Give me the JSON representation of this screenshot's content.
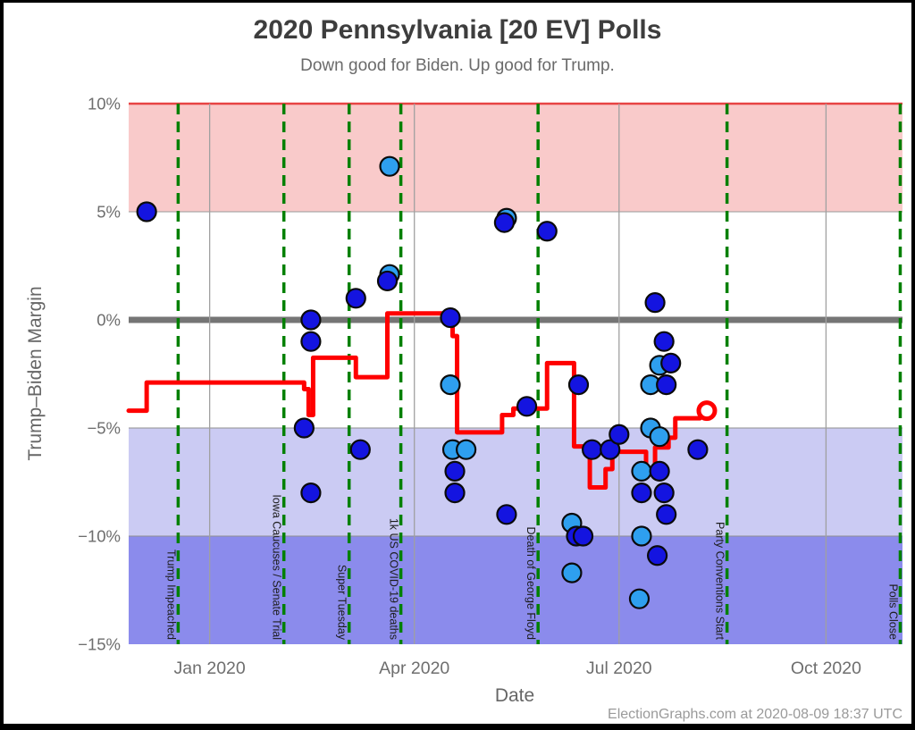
{
  "footer": {
    "credit": "ElectionGraphs.com at 2020-08-09 18:37 UTC"
  },
  "chart_data": {
    "type": "scatter",
    "title": "2020 Pennsylvania [20 EV] Polls",
    "subtitle": "Down good for Biden. Up good for Trump.",
    "xlabel": "Date",
    "ylabel": "Trump–Biden Margin",
    "x_range": [
      "2019-11-26",
      "2020-11-04"
    ],
    "ylim": [
      -15,
      10
    ],
    "grid_on": true,
    "grid_color": "#a0a0a0",
    "y_ticks": [
      {
        "value": 10,
        "label": "10%"
      },
      {
        "value": 5,
        "label": "5%"
      },
      {
        "value": 0,
        "label": "0%"
      },
      {
        "value": -5,
        "label": "−5%"
      },
      {
        "value": -10,
        "label": "−10%"
      },
      {
        "value": -15,
        "label": "−15%"
      }
    ],
    "x_ticks": [
      {
        "date": "2020-01-01",
        "label": "Jan 2020"
      },
      {
        "date": "2020-04-01",
        "label": "Apr 2020"
      },
      {
        "date": "2020-07-01",
        "label": "Jul 2020"
      },
      {
        "date": "2020-10-01",
        "label": "Oct 2020"
      }
    ],
    "bands": [
      {
        "name": "trump-lead-5-10",
        "from": 5,
        "to": 10,
        "color": "#f9caca"
      },
      {
        "name": "biden-lead-5-10",
        "from": -10,
        "to": -5,
        "color": "#cbcbf3"
      },
      {
        "name": "biden-lead-10-15",
        "from": -15,
        "to": -10,
        "color": "#8b8bec"
      }
    ],
    "reference_lines": [
      {
        "value": 10,
        "color": "#e84444",
        "width": 2.5
      },
      {
        "value": 5,
        "color": "#999999",
        "width": 1
      },
      {
        "value": 0,
        "color": "#757575",
        "width": 7
      },
      {
        "value": -5,
        "color": "#8f8f8f",
        "width": 1
      },
      {
        "value": -10,
        "color": "#8f8f8f",
        "width": 1
      }
    ],
    "events": {
      "line_color": "#008000",
      "label_color": "#1c1c1c",
      "items": [
        {
          "date": "2019-12-18",
          "label": "Trump Impeached"
        },
        {
          "date": "2020-02-03",
          "label": "Iowa Caucuses / Senate Trial"
        },
        {
          "date": "2020-03-03",
          "label": "Super Tuesday"
        },
        {
          "date": "2020-03-26",
          "label": "1k US COVID-19 deaths"
        },
        {
          "date": "2020-05-26",
          "label": "Death of George Floyd"
        },
        {
          "date": "2020-08-18",
          "label": "Party Conventions Start"
        },
        {
          "date": "2020-11-03",
          "label": "Polls Close"
        }
      ]
    },
    "average_line": {
      "color": "#ff0000",
      "width": 5,
      "points": [
        {
          "date": "2019-11-26",
          "value": -4.2
        },
        {
          "date": "2019-12-04",
          "value": -2.9
        },
        {
          "date": "2020-02-12",
          "value": -3.2
        },
        {
          "date": "2020-02-14",
          "value": -4.4
        },
        {
          "date": "2020-02-16",
          "value": -1.75
        },
        {
          "date": "2020-03-06",
          "value": -2.65
        },
        {
          "date": "2020-03-20",
          "value": 0.3
        },
        {
          "date": "2020-04-18",
          "value": -0.75
        },
        {
          "date": "2020-04-20",
          "value": -5.2
        },
        {
          "date": "2020-05-10",
          "value": -4.4
        },
        {
          "date": "2020-05-15",
          "value": -4.1
        },
        {
          "date": "2020-05-30",
          "value": -2.0
        },
        {
          "date": "2020-06-11",
          "value": -5.85
        },
        {
          "date": "2020-06-18",
          "value": -7.75
        },
        {
          "date": "2020-06-25",
          "value": -6.9
        },
        {
          "date": "2020-06-28",
          "value": -6.1
        },
        {
          "date": "2020-07-13",
          "value": -7.0
        },
        {
          "date": "2020-07-17",
          "value": -5.9
        },
        {
          "date": "2020-07-23",
          "value": -5.45
        },
        {
          "date": "2020-07-26",
          "value": -4.55
        },
        {
          "date": "2020-08-06",
          "value": -4.2
        },
        {
          "date": "2020-08-09",
          "value": -4.2
        }
      ],
      "end_marker": {
        "date": "2020-08-09",
        "value": -4.2,
        "style": "open-circle"
      }
    },
    "polls": {
      "colors": {
        "dark": "#1414e0",
        "light": "#2e9fef",
        "outline": "#0a0a0a"
      },
      "points": [
        {
          "date": "2019-12-04",
          "value": 5.0,
          "shade": "dark"
        },
        {
          "date": "2020-02-12",
          "value": -5.0,
          "shade": "dark"
        },
        {
          "date": "2020-02-15",
          "value": 0.0,
          "shade": "dark"
        },
        {
          "date": "2020-02-15",
          "value": -1.0,
          "shade": "dark"
        },
        {
          "date": "2020-02-15",
          "value": -8.0,
          "shade": "dark"
        },
        {
          "date": "2020-03-06",
          "value": 1.0,
          "shade": "dark"
        },
        {
          "date": "2020-03-08",
          "value": -6.0,
          "shade": "dark"
        },
        {
          "date": "2020-03-21",
          "value": 7.1,
          "shade": "light"
        },
        {
          "date": "2020-03-21",
          "value": 2.1,
          "shade": "light"
        },
        {
          "date": "2020-03-20",
          "value": 1.8,
          "shade": "dark"
        },
        {
          "date": "2020-04-17",
          "value": 0.1,
          "shade": "dark"
        },
        {
          "date": "2020-04-17",
          "value": -3.0,
          "shade": "light"
        },
        {
          "date": "2020-04-18",
          "value": -6.0,
          "shade": "light"
        },
        {
          "date": "2020-04-24",
          "value": -6.0,
          "shade": "light"
        },
        {
          "date": "2020-04-19",
          "value": -7.0,
          "shade": "dark"
        },
        {
          "date": "2020-04-19",
          "value": -8.0,
          "shade": "dark"
        },
        {
          "date": "2020-05-12",
          "value": 4.7,
          "shade": "light"
        },
        {
          "date": "2020-05-11",
          "value": 4.5,
          "shade": "dark"
        },
        {
          "date": "2020-05-21",
          "value": -4.0,
          "shade": "dark"
        },
        {
          "date": "2020-05-12",
          "value": -9.0,
          "shade": "dark"
        },
        {
          "date": "2020-05-30",
          "value": 4.1,
          "shade": "dark"
        },
        {
          "date": "2020-06-10",
          "value": -9.4,
          "shade": "light"
        },
        {
          "date": "2020-06-12",
          "value": -10.0,
          "shade": "dark"
        },
        {
          "date": "2020-06-15",
          "value": -10.0,
          "shade": "dark"
        },
        {
          "date": "2020-06-10",
          "value": -11.7,
          "shade": "light"
        },
        {
          "date": "2020-06-13",
          "value": -3.0,
          "shade": "dark"
        },
        {
          "date": "2020-06-19",
          "value": -6.0,
          "shade": "dark"
        },
        {
          "date": "2020-06-27",
          "value": -6.0,
          "shade": "dark"
        },
        {
          "date": "2020-07-01",
          "value": -5.3,
          "shade": "dark"
        },
        {
          "date": "2020-07-11",
          "value": -7.0,
          "shade": "light"
        },
        {
          "date": "2020-07-19",
          "value": -7.0,
          "shade": "dark"
        },
        {
          "date": "2020-07-11",
          "value": -8.0,
          "shade": "dark"
        },
        {
          "date": "2020-07-21",
          "value": -8.0,
          "shade": "dark"
        },
        {
          "date": "2020-07-22",
          "value": -9.0,
          "shade": "dark"
        },
        {
          "date": "2020-07-11",
          "value": -10.0,
          "shade": "light"
        },
        {
          "date": "2020-07-18",
          "value": -10.9,
          "shade": "dark"
        },
        {
          "date": "2020-07-10",
          "value": -12.9,
          "shade": "light"
        },
        {
          "date": "2020-07-17",
          "value": 0.8,
          "shade": "dark"
        },
        {
          "date": "2020-07-21",
          "value": -1.0,
          "shade": "dark"
        },
        {
          "date": "2020-07-19",
          "value": -2.1,
          "shade": "light"
        },
        {
          "date": "2020-07-24",
          "value": -2.0,
          "shade": "dark"
        },
        {
          "date": "2020-07-15",
          "value": -3.0,
          "shade": "light"
        },
        {
          "date": "2020-07-22",
          "value": -3.0,
          "shade": "dark"
        },
        {
          "date": "2020-07-15",
          "value": -5.0,
          "shade": "light"
        },
        {
          "date": "2020-07-19",
          "value": -5.4,
          "shade": "light"
        },
        {
          "date": "2020-08-05",
          "value": -6.0,
          "shade": "dark"
        }
      ]
    }
  }
}
